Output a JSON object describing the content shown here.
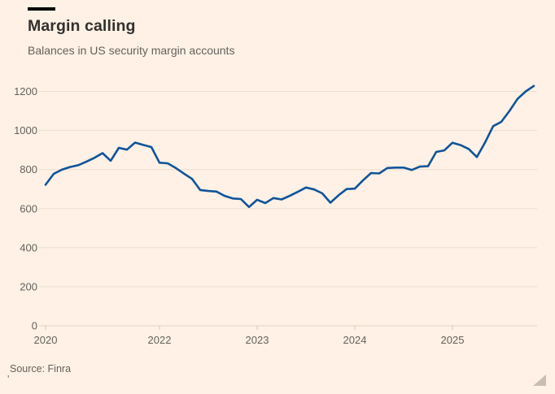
{
  "header": {
    "title": "Margin calling",
    "subtitle": "Balances in US security margin accounts"
  },
  "footer": {
    "source": "Source: Finra",
    "stray_mark": "'"
  },
  "colors": {
    "background": "#fff1e5",
    "line": "#0f5499",
    "title_text": "#33302e",
    "muted_text": "#66605c",
    "gridline": "#ecdfd0",
    "baseline": "#e2d3c2",
    "tick": "#d8c8b7",
    "brand_bar": "#000000",
    "resize_handle": "#c3b8ac"
  },
  "chart_data": {
    "type": "line",
    "title": "Margin calling",
    "subtitle": "Balances in US security margin accounts",
    "source": "Source: Finra",
    "x": [
      "2020-11",
      "2020-12",
      "2021-01",
      "2021-02",
      "2021-03",
      "2021-04",
      "2021-05",
      "2021-06",
      "2021-07",
      "2021-08",
      "2021-09",
      "2021-10",
      "2021-11",
      "2021-12",
      "2022-01",
      "2022-02",
      "2022-03",
      "2022-04",
      "2022-05",
      "2022-06",
      "2022-07",
      "2022-08",
      "2022-09",
      "2022-10",
      "2022-11",
      "2022-12",
      "2023-01",
      "2023-02",
      "2023-03",
      "2023-04",
      "2023-05",
      "2023-06",
      "2023-07",
      "2023-08",
      "2023-09",
      "2023-10",
      "2023-11",
      "2023-12",
      "2024-01",
      "2024-02",
      "2024-03",
      "2024-04",
      "2024-05",
      "2024-06",
      "2024-07",
      "2024-08",
      "2024-09",
      "2024-10",
      "2024-11",
      "2024-12",
      "2025-01",
      "2025-02",
      "2025-03",
      "2025-04",
      "2025-05",
      "2025-06",
      "2025-07",
      "2025-08",
      "2025-09",
      "2025-10",
      "2025-11"
    ],
    "values": [
      722,
      778,
      799,
      813,
      822,
      840,
      860,
      884,
      845,
      911,
      902,
      938,
      926,
      915,
      835,
      832,
      808,
      779,
      752,
      695,
      690,
      687,
      665,
      652,
      649,
      608,
      645,
      628,
      654,
      647,
      665,
      686,
      708,
      698,
      678,
      630,
      668,
      700,
      702,
      744,
      782,
      780,
      808,
      810,
      810,
      798,
      815,
      817,
      890,
      898,
      937,
      925,
      905,
      864,
      938,
      1022,
      1044,
      1100,
      1162,
      1200,
      1228
    ],
    "y_ticks": [
      0,
      200,
      400,
      600,
      800,
      1000,
      1200
    ],
    "x_tick_labels": [
      "2020",
      "2022",
      "2023",
      "2024",
      "2025"
    ],
    "x_tick_indices": [
      0,
      14,
      26,
      38,
      50
    ],
    "ylim": [
      0,
      1260
    ],
    "grid": true,
    "legend": "none"
  }
}
